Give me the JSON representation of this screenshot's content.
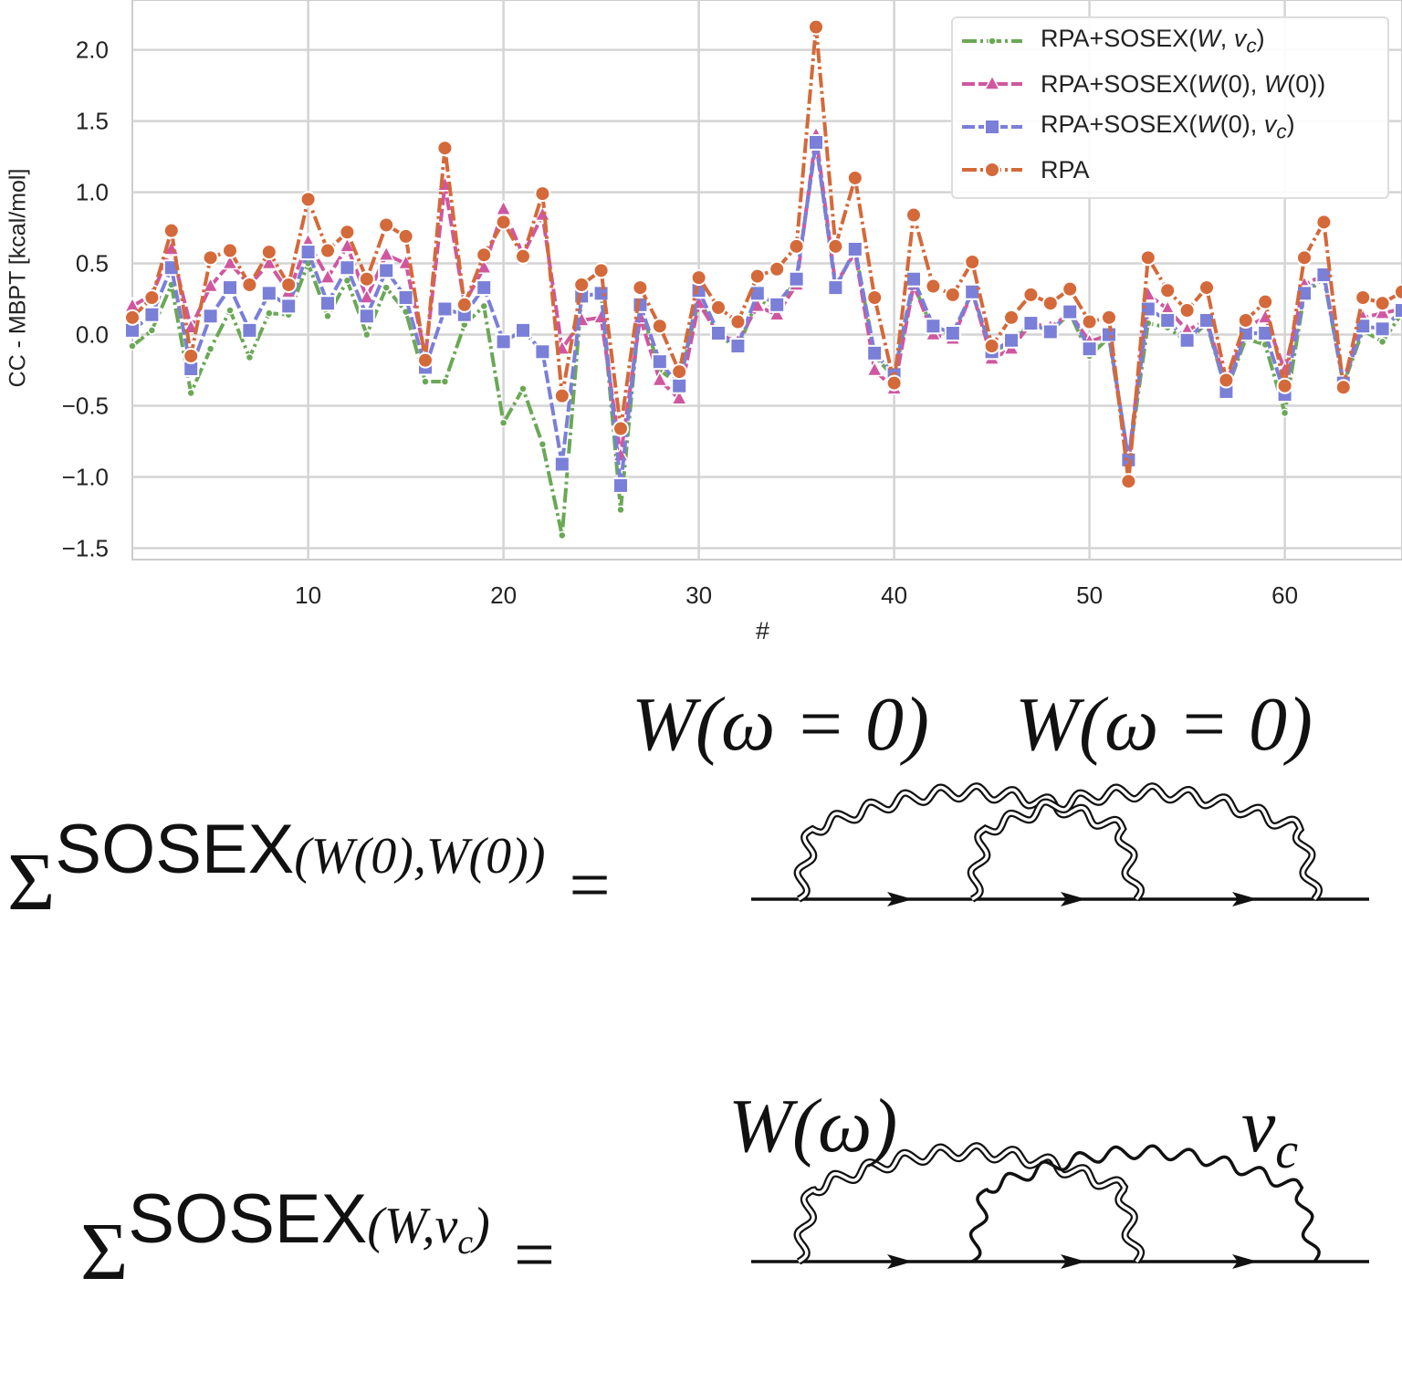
{
  "chart_data": {
    "type": "line",
    "xlabel": "#",
    "ylabel": "CC - MBPT [kcal/mol]",
    "xlim": [
      1,
      66
    ],
    "ylim": [
      -1.58,
      2.35
    ],
    "xticks": [
      10,
      20,
      30,
      40,
      50,
      60
    ],
    "yticks": [
      -1.5,
      -1.0,
      -0.5,
      0.0,
      0.5,
      1.0,
      1.5,
      2.0
    ],
    "ytick_labels": [
      "−1.5",
      "−1.0",
      "−0.5",
      "0.0",
      "0.5",
      "1.0",
      "1.5",
      "2.0"
    ],
    "grid": true,
    "legend_placement": "top-right",
    "x_start": 1,
    "series": [
      {
        "name": "RPA+SOSEX(W, v_c)",
        "label_html": "RPA+SOSEX(<i>W</i>, <i>v<sub>c</sub></i>)",
        "color": "#6ba856",
        "marker": "dot",
        "dash": "dashdot",
        "values": [
          -0.08,
          0.03,
          0.35,
          -0.41,
          -0.1,
          0.17,
          -0.16,
          0.15,
          0.14,
          0.5,
          0.13,
          0.38,
          0.0,
          0.33,
          0.16,
          -0.33,
          -0.33,
          0.07,
          0.2,
          -0.62,
          -0.38,
          -0.77,
          -1.41,
          0.27,
          0.29,
          -1.23,
          0.21,
          -0.25,
          -0.35,
          0.25,
          0.0,
          -0.1,
          0.25,
          0.18,
          0.39,
          1.35,
          0.33,
          0.6,
          -0.15,
          -0.3,
          0.35,
          0.03,
          0.0,
          0.3,
          -0.12,
          -0.06,
          0.08,
          0.02,
          0.15,
          -0.15,
          -0.02,
          -0.9,
          0.08,
          0.05,
          -0.05,
          0.08,
          -0.4,
          -0.03,
          -0.07,
          -0.55,
          0.28,
          0.4,
          -0.35,
          0.03,
          -0.05,
          0.15
        ]
      },
      {
        "name": "RPA+SOSEX(W(0), W(0))",
        "label_html": "RPA+SOSEX(<i>W</i>(0), <i>W</i>(0))",
        "color": "#d0579f",
        "marker": "triangle",
        "dash": "dashed",
        "values": [
          0.2,
          0.28,
          0.6,
          0.05,
          0.34,
          0.5,
          0.35,
          0.5,
          0.3,
          0.65,
          0.4,
          0.62,
          0.26,
          0.56,
          0.5,
          -0.15,
          1.05,
          0.22,
          0.47,
          0.88,
          0.56,
          0.84,
          -0.1,
          0.1,
          0.12,
          -0.85,
          0.12,
          -0.32,
          -0.45,
          0.22,
          0.0,
          -0.05,
          0.2,
          0.14,
          0.35,
          1.4,
          0.35,
          0.58,
          -0.25,
          -0.38,
          0.35,
          0.0,
          -0.03,
          0.3,
          -0.17,
          -0.1,
          0.08,
          0.05,
          0.15,
          -0.05,
          0.0,
          -0.88,
          0.28,
          0.18,
          0.03,
          0.1,
          -0.35,
          0.05,
          0.12,
          -0.25,
          0.35,
          0.42,
          -0.33,
          0.12,
          0.15,
          0.18
        ]
      },
      {
        "name": "RPA+SOSEX(W(0), v_c)",
        "label_html": "RPA+SOSEX(<i>W</i>(0), <i>v<sub>c</sub></i>)",
        "color": "#7a7fd8",
        "marker": "square",
        "dash": "dashed",
        "values": [
          0.03,
          0.14,
          0.47,
          -0.24,
          0.13,
          0.33,
          0.03,
          0.29,
          0.2,
          0.58,
          0.22,
          0.47,
          0.13,
          0.45,
          0.26,
          -0.23,
          0.18,
          0.14,
          0.33,
          -0.05,
          0.03,
          -0.12,
          -0.91,
          0.27,
          0.29,
          -1.06,
          0.21,
          -0.19,
          -0.36,
          0.31,
          0.01,
          -0.08,
          0.29,
          0.21,
          0.39,
          1.35,
          0.33,
          0.6,
          -0.13,
          -0.28,
          0.39,
          0.06,
          0.01,
          0.3,
          -0.12,
          -0.04,
          0.08,
          0.02,
          0.16,
          -0.1,
          0.0,
          -0.88,
          0.18,
          0.1,
          -0.04,
          0.1,
          -0.4,
          0.01,
          0.01,
          -0.42,
          0.29,
          0.42,
          -0.34,
          0.06,
          0.04,
          0.17
        ]
      },
      {
        "name": "RPA",
        "label_html": "RPA",
        "color": "#d4693a",
        "marker": "circle",
        "dash": "dashdot",
        "values": [
          0.12,
          0.26,
          0.73,
          -0.15,
          0.54,
          0.59,
          0.35,
          0.58,
          0.35,
          0.95,
          0.59,
          0.72,
          0.39,
          0.77,
          0.69,
          -0.18,
          1.31,
          0.21,
          0.56,
          0.79,
          0.55,
          0.99,
          -0.43,
          0.35,
          0.45,
          -0.66,
          0.33,
          0.06,
          -0.26,
          0.4,
          0.19,
          0.09,
          0.41,
          0.46,
          0.62,
          2.16,
          0.62,
          1.1,
          0.26,
          -0.34,
          0.84,
          0.34,
          0.28,
          0.51,
          -0.08,
          0.12,
          0.28,
          0.22,
          0.32,
          0.09,
          0.12,
          -1.03,
          0.54,
          0.31,
          0.17,
          0.33,
          -0.32,
          0.1,
          0.23,
          -0.36,
          0.54,
          0.79,
          -0.37,
          0.26,
          0.22,
          0.3
        ]
      }
    ]
  },
  "diagrams": {
    "top": {
      "label_left": "W(ω = 0)",
      "label_right": "W(ω = 0)",
      "sigma": "Σ",
      "superscript": "SOSEX",
      "subscript": "(W(0),W(0))",
      "equals": "="
    },
    "bottom": {
      "label_left": "W(ω)",
      "label_right": "v",
      "label_right_sub": "c",
      "sigma": "Σ",
      "superscript": "SOSEX",
      "subscript": "(W,v",
      "subscript_sub": "c",
      "subscript_end": ")",
      "equals": "="
    }
  }
}
